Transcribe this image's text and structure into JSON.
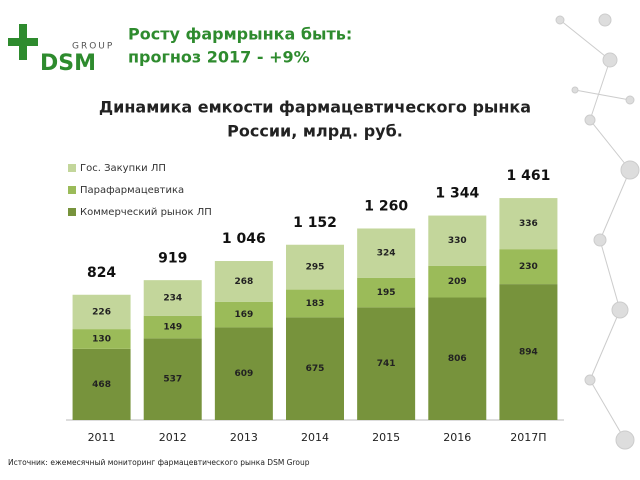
{
  "header": {
    "logo_top": "GROUP",
    "logo_main": "DSM",
    "title_line1": "Росту фармрынка быть:",
    "title_line2": "прогноз 2017 - +9%"
  },
  "chart_data": {
    "type": "stacked_bar",
    "title_line1": "Динамика емкости фармацевтического рынка",
    "title_line2": "России, млрд. руб.",
    "categories": [
      "2011",
      "2012",
      "2013",
      "2014",
      "2015",
      "2016",
      "2017П"
    ],
    "series": [
      {
        "name": "Коммерческий рынок ЛП",
        "color": "#77933c",
        "values": [
          468,
          537,
          609,
          675,
          741,
          806,
          894
        ]
      },
      {
        "name": "Парафармацевтика",
        "color": "#9bbb59",
        "values": [
          130,
          149,
          169,
          183,
          195,
          209,
          230
        ]
      },
      {
        "name": "Гос. Закупки ЛП",
        "color": "#c3d69b",
        "values": [
          226,
          234,
          268,
          295,
          324,
          330,
          336
        ]
      }
    ],
    "totals": {
      "values": [
        824,
        919,
        1046,
        1152,
        1260,
        1344,
        1461
      ],
      "value_labels": [
        "824",
        "919",
        "1 046",
        "1 152",
        "1 260",
        "1 344",
        "1 461"
      ]
    }
  },
  "footer": {
    "source": "Источник: ежемесячный мониторинг фармацевтического рынка DSM Group"
  }
}
